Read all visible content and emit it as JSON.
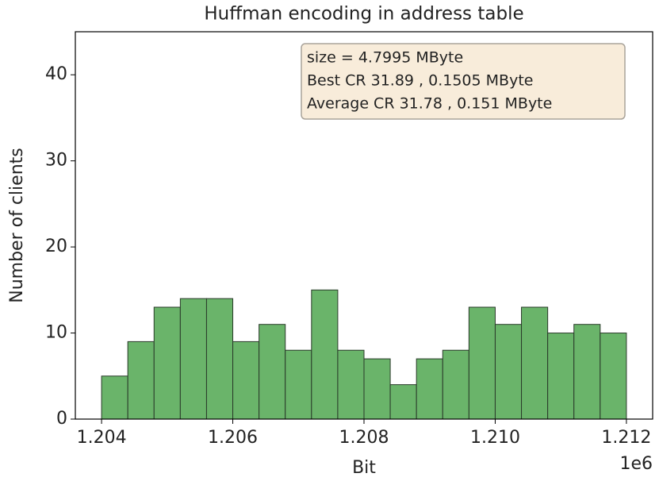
{
  "chart_data": {
    "type": "histogram",
    "title": "Huffman encoding in address table",
    "xlabel": "Bit",
    "ylabel": "Number of clients",
    "x_offset_label": "1e6",
    "annotation": [
      "size  = 4.7995 MByte",
      "Best CR   31.89 ,  0.1505 MByte",
      "Average CR   31.78 ,  0.151 MByte"
    ],
    "bins": [
      1.204,
      1.2044,
      1.2048,
      1.2052,
      1.2056,
      1.206,
      1.2064,
      1.2068,
      1.2072,
      1.2076,
      1.208,
      1.2084,
      1.2088,
      1.2092,
      1.2096,
      1.21,
      1.2104,
      1.2108,
      1.2112,
      1.2116,
      1.212
    ],
    "values": [
      5,
      9,
      13,
      14,
      14,
      9,
      11,
      8,
      15,
      8,
      7,
      4,
      7,
      8,
      13,
      11,
      13,
      10,
      11,
      10
    ],
    "color": "#6ab46a",
    "edgecolor": "#2a3a2a",
    "xlim": [
      1.2036,
      1.2124
    ],
    "xticks": [
      {
        "value": 1.204,
        "label": "1.204"
      },
      {
        "value": 1.206,
        "label": "1.206"
      },
      {
        "value": 1.208,
        "label": "1.208"
      },
      {
        "value": 1.21,
        "label": "1.210"
      },
      {
        "value": 1.212,
        "label": "1.212"
      }
    ],
    "ylim": [
      0,
      45
    ],
    "yticks": [
      0,
      10,
      20,
      30,
      40
    ],
    "grid": false
  }
}
